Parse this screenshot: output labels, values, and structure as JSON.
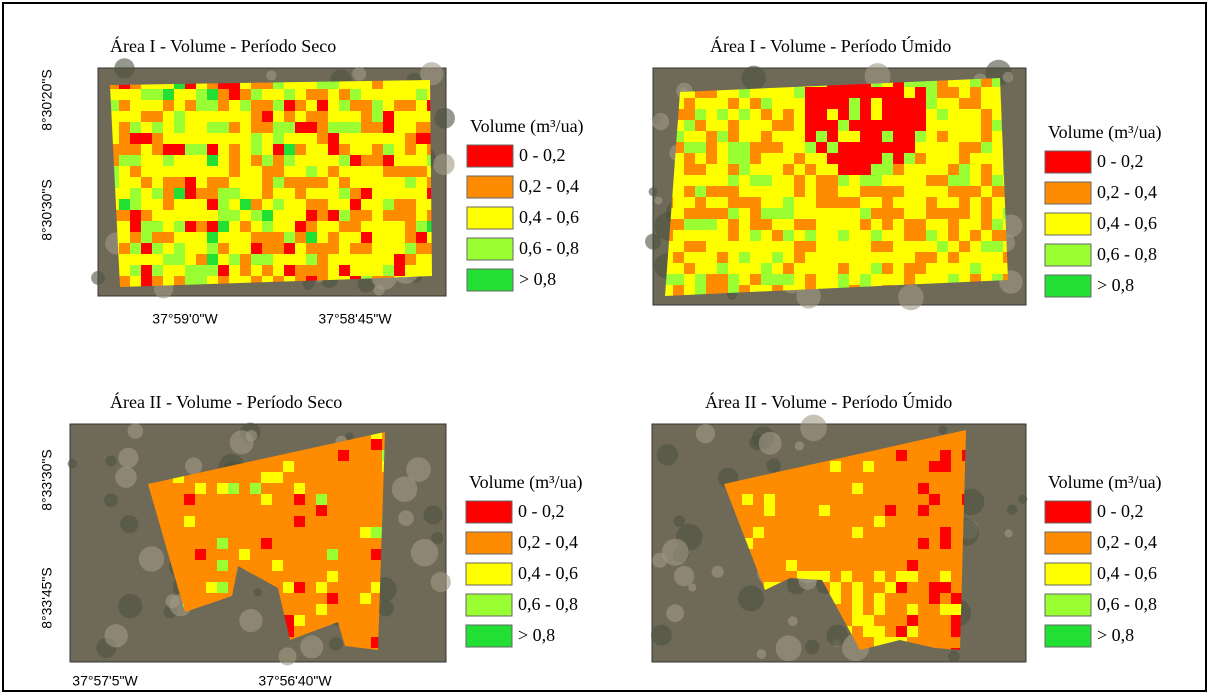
{
  "panels": [
    {
      "title": "Área I - Volume - Período Seco",
      "legend_title": "Volume (m³/ua)",
      "legend": [
        {
          "label": "0 - 0,2",
          "color": "#ff0000"
        },
        {
          "label": "0,2 - 0,4",
          "color": "#ff8c00"
        },
        {
          "label": "0,4 - 0,6",
          "color": "#ffff00"
        },
        {
          "label": "0,6 - 0,8",
          "color": "#99ff33"
        },
        {
          "label": "> 0,8",
          "color": "#22e033"
        }
      ],
      "lat_labels": [
        "8°30'20\"S",
        "8°30'30\"S"
      ],
      "lon_labels": [
        "37°59'0\"W",
        "37°58'45\"W"
      ]
    },
    {
      "title": "Área I - Volume - Período Úmido",
      "legend_title": "Volume (m³/ua)",
      "legend": [
        {
          "label": "0 - 0,2",
          "color": "#ff0000"
        },
        {
          "label": "0,2 - 0,4",
          "color": "#ff8c00"
        },
        {
          "label": "0,4 - 0,6",
          "color": "#ffff00"
        },
        {
          "label": "0,6 - 0,8",
          "color": "#99ff33"
        },
        {
          "label": "> 0,8",
          "color": "#22e033"
        }
      ],
      "lat_labels": [],
      "lon_labels": []
    },
    {
      "title": "Área II - Volume - Período Seco",
      "legend_title": "Volume (m³/ua)",
      "legend": [
        {
          "label": "0 - 0,2",
          "color": "#ff0000"
        },
        {
          "label": "0,2 - 0,4",
          "color": "#ff8c00"
        },
        {
          "label": "0,4 - 0,6",
          "color": "#ffff00"
        },
        {
          "label": "0,6 - 0,8",
          "color": "#99ff33"
        },
        {
          "label": "> 0,8",
          "color": "#22e033"
        }
      ],
      "lat_labels": [
        "8°33'30\"S",
        "8°33'45\"S"
      ],
      "lon_labels": [
        "37°57'5\"W",
        "37°56'40\"W"
      ]
    },
    {
      "title": "Área II - Volume - Período Úmido",
      "legend_title": "Volume (m³/ua)",
      "legend": [
        {
          "label": "0 - 0,2",
          "color": "#ff0000"
        },
        {
          "label": "0,2 - 0,4",
          "color": "#ff8c00"
        },
        {
          "label": "0,4 - 0,6",
          "color": "#ffff00"
        },
        {
          "label": "0,6 - 0,8",
          "color": "#99ff33"
        },
        {
          "label": "> 0,8",
          "color": "#22e033"
        }
      ],
      "lat_labels": [],
      "lon_labels": []
    }
  ]
}
